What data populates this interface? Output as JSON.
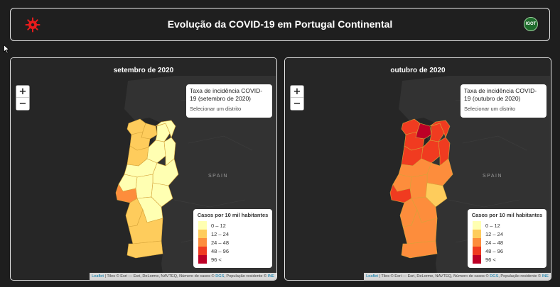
{
  "header": {
    "title": "Evolução da COVID-19 em Portugal Continental",
    "logo_text": "IGOT",
    "virus_icon": "virus-icon",
    "logo_color": "#1e6b2c"
  },
  "zoom": {
    "in": "+",
    "out": "−"
  },
  "spain_label": "SPAIN",
  "legend": {
    "title": "Casos por 10 mil habitantes",
    "items": [
      {
        "label": "0 – 12",
        "color": "#ffffb2"
      },
      {
        "label": "12 – 24",
        "color": "#fecc5c"
      },
      {
        "label": "24 – 48",
        "color": "#fd8d3c"
      },
      {
        "label": "48 – 96",
        "color": "#f03b20"
      },
      {
        "label": "96 <",
        "color": "#bd0026"
      }
    ]
  },
  "attribution": {
    "leaflet": "Leaflet",
    "middle": " | Tiles © Esri — Esri, DeLorme, NAVTEQ, Número de casos © ",
    "dgs": "DGS",
    "pop": ", População residente © ",
    "ine": "INE"
  },
  "panels": [
    {
      "title": "setembro de 2020",
      "info_title": "Taxa de incidência COVID-19 (setembro de 2020)",
      "info_hint": "Selecionar um distrito",
      "district_classes": {
        "viana": 1,
        "braga": 1,
        "porto": 1,
        "vila_real": 0,
        "braganca": 0,
        "aveiro": 1,
        "viseu": 0,
        "guarda": 0,
        "coimbra": 0,
        "castelo_branco": 0,
        "leiria": 0,
        "santarem": 0,
        "portalegre": 0,
        "lisboa": 2,
        "setubal": 1,
        "evora": 0,
        "beja": 1,
        "faro": 1
      }
    },
    {
      "title": "outubro de 2020",
      "info_title": "Taxa de incidência COVID-19 (outubro de 2020)",
      "info_hint": "Selecionar um distrito",
      "district_classes": {
        "viana": 3,
        "braga": 4,
        "porto": 3,
        "vila_real": 3,
        "braganca": 3,
        "aveiro": 3,
        "viseu": 3,
        "guarda": 3,
        "coimbra": 2,
        "castelo_branco": 2,
        "leiria": 2,
        "santarem": 2,
        "portalegre": 1,
        "lisboa": 3,
        "setubal": 2,
        "evora": 2,
        "beja": 2,
        "faro": 2
      }
    }
  ]
}
